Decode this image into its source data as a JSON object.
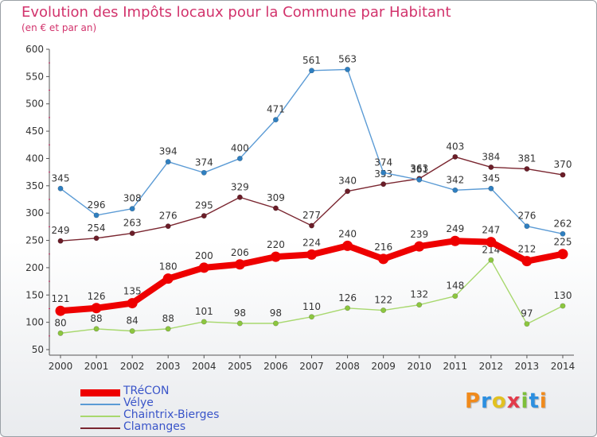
{
  "title": "Evolution des Impôts locaux pour la Commune par Habitant",
  "subtitle": "(en € et par an)",
  "logo": {
    "text": "Proxiti",
    "colors": [
      "#f08a1c",
      "#2c8fe0",
      "#e2c120",
      "#e23b4b",
      "#7dbf3a",
      "#2c8fe0",
      "#f08a1c"
    ]
  },
  "chart_data": {
    "type": "line",
    "x": [
      2000,
      2001,
      2002,
      2003,
      2004,
      2005,
      2006,
      2007,
      2008,
      2009,
      2010,
      2011,
      2012,
      2013,
      2014
    ],
    "xlabel": "",
    "ylabel": "",
    "ylim": [
      50,
      600
    ],
    "yticks": [
      50,
      100,
      150,
      200,
      250,
      300,
      350,
      400,
      450,
      500,
      550,
      600
    ],
    "grid": false,
    "legend_position": "bottom-left",
    "series": [
      {
        "name": "Clamanges",
        "color": "#7a2630",
        "marker_color": "#6b1d28",
        "values": [
          249,
          254,
          263,
          276,
          295,
          329,
          309,
          277,
          340,
          353,
          363,
          403,
          384,
          381,
          370
        ],
        "labels": [
          "249",
          "254",
          "263",
          "276",
          "295",
          "329",
          "309",
          "277",
          "340",
          "353",
          "363",
          "403",
          "384",
          "381",
          "370"
        ]
      },
      {
        "name": "Vélye",
        "color": "#5b9bd5",
        "marker_color": "#2f7fc0",
        "values": [
          345,
          296,
          308,
          394,
          374,
          400,
          471,
          561,
          563,
          374,
          361,
          342,
          345,
          276,
          262
        ],
        "labels": [
          "345",
          "296",
          "308",
          "394",
          "374",
          "400",
          "471",
          "561",
          "563",
          "374",
          "361",
          "342",
          "345",
          "276",
          "262"
        ]
      },
      {
        "name": "Chaintrix-Bierges",
        "color": "#a8d86e",
        "marker_color": "#8cc63f",
        "values": [
          80,
          88,
          84,
          88,
          101,
          98,
          98,
          110,
          126,
          122,
          132,
          148,
          214,
          97,
          130
        ],
        "labels": [
          "80",
          "88",
          "84",
          "88",
          "101",
          "98",
          "98",
          "110",
          "126",
          "122",
          "132",
          "148",
          "214",
          "97",
          "130"
        ]
      },
      {
        "name": "TRéCON",
        "color": "#ee0000",
        "marker_color": "#ee0000",
        "values": [
          121,
          126,
          135,
          180,
          200,
          206,
          220,
          224,
          240,
          216,
          239,
          249,
          247,
          212,
          225
        ],
        "labels": [
          "121",
          "126",
          "135",
          "180",
          "200",
          "206",
          "220",
          "224",
          "240",
          "216",
          "239",
          "249",
          "247",
          "212",
          "225"
        ]
      }
    ]
  },
  "legend": [
    {
      "label": "TRéCON",
      "color": "#ee0000"
    },
    {
      "label": "Vélye",
      "color": "#5b9bd5"
    },
    {
      "label": "Chaintrix-Bierges",
      "color": "#a8d86e"
    },
    {
      "label": "Clamanges",
      "color": "#7a2630"
    }
  ]
}
